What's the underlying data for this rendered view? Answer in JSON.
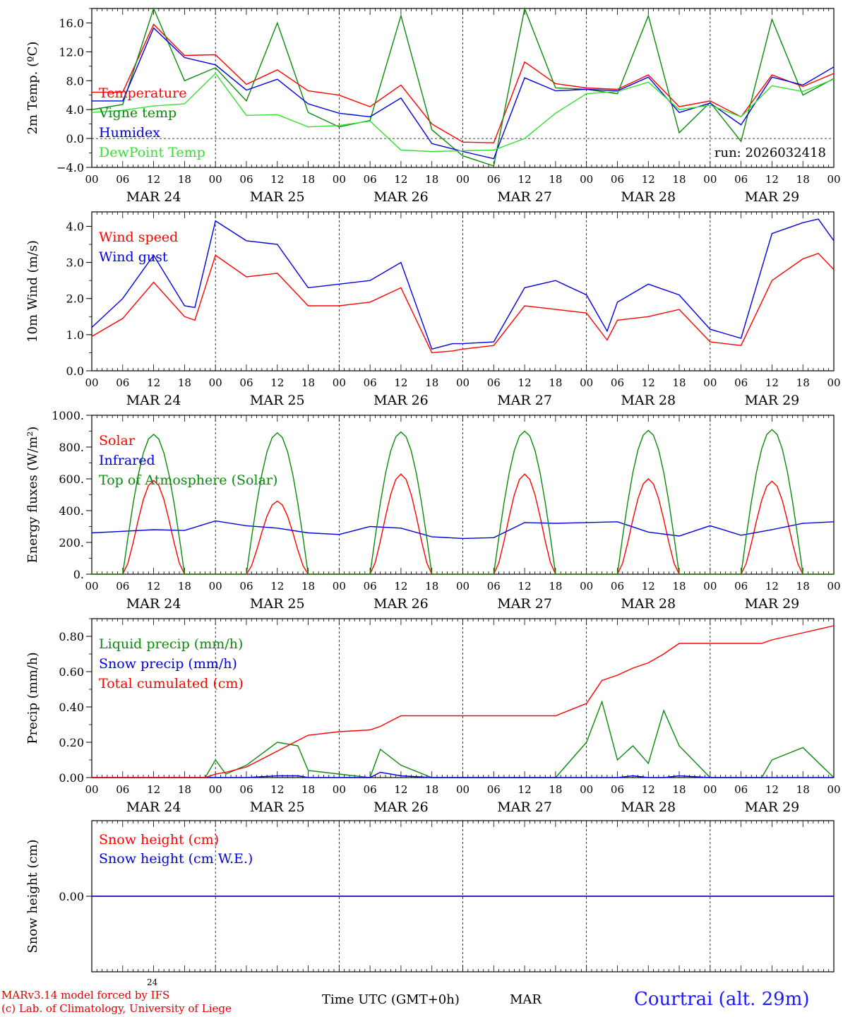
{
  "colors": {
    "red": "#ff0000",
    "green": "#0a8a0a",
    "blue": "#0000e0",
    "lightgreen": "#33e033",
    "black": "#000000"
  },
  "x_axis": {
    "hour_ticks": [
      "00",
      "06",
      "12",
      "18",
      "00",
      "06",
      "12",
      "18",
      "00",
      "06",
      "12",
      "18",
      "00",
      "06",
      "12",
      "18",
      "00",
      "06",
      "12",
      "18",
      "00",
      "06",
      "12",
      "18",
      "00"
    ],
    "day_labels": [
      "MAR 24",
      "MAR 25",
      "MAR 26",
      "MAR 27",
      "MAR 28",
      "MAR 29"
    ]
  },
  "footer": {
    "credit_line1": "MARv3.14 model forced by IFS",
    "credit_line2": "(c) Lab. of Climatology, University of Liege",
    "small_day": "24",
    "time_label": "Time UTC (GMT+0h)",
    "month": "MAR",
    "station": "Courtrai (alt. 29m)"
  },
  "chart_data": [
    {
      "type": "line",
      "id": "temp",
      "ylabel": "2m Temp. (ºC)",
      "ylim": [
        -4,
        18
      ],
      "yticks": [
        -4,
        0,
        4,
        8,
        12,
        16
      ],
      "ytick_labels": [
        "−4.0",
        "0.0",
        "4.0",
        "8.0",
        "12.0",
        "16.0"
      ],
      "zero_line": true,
      "annotation": "run: 2026032418",
      "x_hours": [
        0,
        6,
        12,
        18,
        24,
        30,
        36,
        42,
        48,
        54,
        60,
        66,
        72,
        78,
        84,
        90,
        96,
        102,
        108,
        114,
        120,
        126,
        132,
        138,
        144
      ],
      "series": [
        {
          "name": "Temperature",
          "color": "red",
          "values": [
            6.4,
            6.4,
            15.8,
            11.5,
            11.6,
            7.5,
            9.5,
            6.6,
            6.0,
            4.4,
            7.4,
            2.0,
            -0.5,
            -0.6,
            10.6,
            7.6,
            7.0,
            6.8,
            8.8,
            4.4,
            5.2,
            3.0,
            8.8,
            7.2,
            9.0
          ]
        },
        {
          "name": "Vigne temp",
          "color": "green",
          "values": [
            4.0,
            4.7,
            19.0,
            8.0,
            9.8,
            5.2,
            16.0,
            3.6,
            1.6,
            2.5,
            17.0,
            1.2,
            -2.4,
            -3.8,
            18.5,
            7.0,
            6.8,
            6.2,
            17.0,
            0.8,
            5.0,
            -0.4,
            16.5,
            6.0,
            8.3
          ]
        },
        {
          "name": "Humidex",
          "color": "blue",
          "values": [
            5.2,
            5.2,
            15.3,
            11.2,
            10.2,
            6.7,
            8.2,
            4.8,
            3.5,
            3.0,
            5.6,
            -0.7,
            -1.8,
            -2.8,
            8.4,
            6.6,
            6.8,
            6.6,
            8.5,
            3.6,
            4.9,
            1.9,
            8.5,
            7.4,
            9.9
          ]
        },
        {
          "name": "DewPoint Temp",
          "color": "lightgreen",
          "values": [
            3.6,
            3.9,
            4.5,
            4.8,
            9.0,
            3.2,
            3.3,
            1.6,
            1.8,
            2.4,
            -1.6,
            -1.8,
            -1.7,
            -1.6,
            0.0,
            3.5,
            6.2,
            6.5,
            7.8,
            4.0,
            4.6,
            3.0,
            7.3,
            6.5,
            8.2
          ]
        }
      ]
    },
    {
      "type": "line",
      "id": "wind",
      "ylabel": "10m Wind (m/s)",
      "ylim": [
        0,
        4.4
      ],
      "yticks": [
        0,
        1,
        2,
        3,
        4
      ],
      "ytick_labels": [
        "0.0",
        "1.0",
        "2.0",
        "3.0",
        "4.0"
      ],
      "x_hours": [
        0,
        6,
        12,
        18,
        20,
        24,
        30,
        36,
        42,
        48,
        54,
        60,
        66,
        70,
        72,
        78,
        84,
        90,
        96,
        100,
        102,
        108,
        114,
        120,
        126,
        132,
        138,
        141,
        144
      ],
      "series": [
        {
          "name": "Wind speed",
          "color": "red",
          "values": [
            0.95,
            1.45,
            2.45,
            1.5,
            1.4,
            3.2,
            2.6,
            2.7,
            1.8,
            1.8,
            1.9,
            2.3,
            0.5,
            0.55,
            0.6,
            0.7,
            1.8,
            1.7,
            1.6,
            0.85,
            1.4,
            1.5,
            1.7,
            0.8,
            0.7,
            2.5,
            3.1,
            3.25,
            2.8
          ]
        },
        {
          "name": "Wind gust",
          "color": "blue",
          "values": [
            1.2,
            2.0,
            3.2,
            1.8,
            1.75,
            4.15,
            3.6,
            3.5,
            2.3,
            2.4,
            2.5,
            3.0,
            0.6,
            0.75,
            0.75,
            0.8,
            2.3,
            2.5,
            2.1,
            1.1,
            1.9,
            2.4,
            2.1,
            1.15,
            0.9,
            3.8,
            4.1,
            4.2,
            3.6
          ]
        }
      ]
    },
    {
      "type": "line",
      "id": "energy",
      "ylabel": "Energy fluxes (W/m²)",
      "ylim": [
        0,
        1000
      ],
      "yticks": [
        0,
        200,
        400,
        600,
        800,
        1000
      ],
      "ytick_labels": [
        "0.",
        "200.",
        "400.",
        "600.",
        "800.",
        "1000."
      ],
      "x_hours": [
        0,
        6,
        12,
        18,
        24,
        30,
        36,
        42,
        48,
        54,
        60,
        66,
        72,
        78,
        84,
        90,
        96,
        102,
        108,
        114,
        120,
        126,
        132,
        138,
        144
      ],
      "series": [
        {
          "name": "Solar",
          "color": "red",
          "peaks": [
            {
              "day": 0,
              "value": 590
            },
            {
              "day": 1,
              "value": 460
            },
            {
              "day": 2,
              "value": 630
            },
            {
              "day": 3,
              "value": 630
            },
            {
              "day": 4,
              "value": 600
            },
            {
              "day": 5,
              "value": 585
            }
          ]
        },
        {
          "name": "Infrared",
          "color": "blue",
          "values": [
            260,
            270,
            280,
            275,
            335,
            305,
            290,
            260,
            250,
            300,
            290,
            235,
            225,
            230,
            325,
            320,
            325,
            330,
            265,
            240,
            305,
            245,
            280,
            320,
            330
          ]
        },
        {
          "name": "Top of Atmosphere (Solar)",
          "color": "green",
          "peaks": [
            {
              "day": 0,
              "value": 880
            },
            {
              "day": 1,
              "value": 890
            },
            {
              "day": 2,
              "value": 895
            },
            {
              "day": 3,
              "value": 900
            },
            {
              "day": 4,
              "value": 905
            },
            {
              "day": 5,
              "value": 910
            }
          ]
        }
      ]
    },
    {
      "type": "line",
      "id": "precip",
      "ylabel": "Precip (mm/h)",
      "ylim": [
        0,
        0.9
      ],
      "yticks": [
        0,
        0.2,
        0.4,
        0.6,
        0.8
      ],
      "ytick_labels": [
        "0.00",
        "0.20",
        "0.40",
        "0.60",
        "0.80"
      ],
      "x_hours": [
        0,
        6,
        12,
        18,
        22,
        24,
        26,
        30,
        36,
        40,
        42,
        48,
        54,
        56,
        60,
        66,
        72,
        78,
        84,
        90,
        96,
        99,
        102,
        105,
        108,
        111,
        114,
        120,
        126,
        130,
        132,
        138,
        144
      ],
      "series": [
        {
          "name": "Liquid precip (mm/h)",
          "color": "green",
          "values": [
            0,
            0,
            0,
            0,
            0,
            0.1,
            0.02,
            0.07,
            0.2,
            0.18,
            0.04,
            0.02,
            0,
            0.16,
            0.07,
            0,
            0,
            0,
            0,
            0,
            0.2,
            0.43,
            0.1,
            0.18,
            0.08,
            0.38,
            0.18,
            0,
            0,
            0,
            0.1,
            0.17,
            0
          ]
        },
        {
          "name": "Snow precip (mm/h)",
          "color": "blue",
          "values": [
            0,
            0,
            0,
            0,
            0,
            0,
            0,
            0,
            0.01,
            0.01,
            0,
            0,
            0,
            0.03,
            0.01,
            0,
            0,
            0,
            0,
            0,
            0,
            0,
            0,
            0.01,
            0,
            0,
            0.01,
            0,
            0,
            0,
            0,
            0,
            0
          ]
        },
        {
          "name": "Total cumulated (cm)",
          "color": "red",
          "values": [
            0,
            0,
            0,
            0,
            0,
            0.02,
            0.03,
            0.06,
            0.15,
            0.21,
            0.24,
            0.26,
            0.27,
            0.29,
            0.35,
            0.35,
            0.35,
            0.35,
            0.35,
            0.35,
            0.42,
            0.55,
            0.58,
            0.62,
            0.65,
            0.7,
            0.76,
            0.76,
            0.76,
            0.76,
            0.78,
            0.82,
            0.86
          ]
        }
      ]
    },
    {
      "type": "line",
      "id": "snow",
      "ylabel": "Snow height (cm)",
      "ylim": [
        -1,
        1
      ],
      "yticks": [
        0
      ],
      "ytick_labels": [
        "0.00"
      ],
      "x_hours": [
        0,
        144
      ],
      "series": [
        {
          "name": "Snow height (cm)",
          "color": "red",
          "values": [
            0,
            0
          ]
        },
        {
          "name": "Snow height (cm W.E.)",
          "color": "blue",
          "values": [
            0,
            0
          ]
        }
      ]
    }
  ]
}
